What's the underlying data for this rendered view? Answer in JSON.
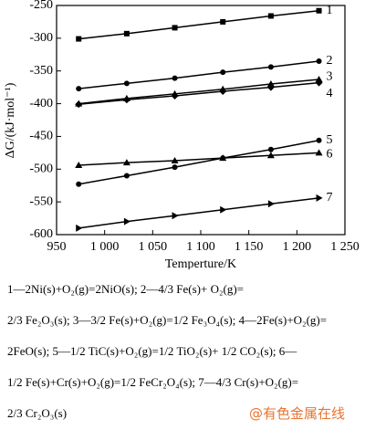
{
  "chart_data": {
    "type": "line",
    "x_label": "Temperture/K",
    "y_label": "ΔG/(kJ·mol⁻¹)",
    "x": [
      973,
      1023,
      1073,
      1123,
      1173,
      1223
    ],
    "xlim": [
      950,
      1250
    ],
    "xticks": [
      950,
      {
        "value": 1000,
        "label": "1 000"
      },
      {
        "value": 1050,
        "label": "1 050"
      },
      {
        "value": 1100,
        "label": "1 100"
      },
      {
        "value": 1150,
        "label": "1 150"
      },
      {
        "value": 1200,
        "label": "1 200"
      },
      {
        "value": 1250,
        "label": "1 250"
      }
    ],
    "ylim": [
      -600,
      -250
    ],
    "yticks": [
      -600,
      -550,
      -500,
      -450,
      -400,
      -350,
      -300,
      -250
    ],
    "series": [
      {
        "name": "1",
        "color": "#000000",
        "marker": "square",
        "values": [
          -301,
          -293,
          -284,
          -275,
          -266,
          -258
        ]
      },
      {
        "name": "2",
        "color": "#000000",
        "marker": "circle",
        "values": [
          -377,
          -369,
          -361,
          -352,
          -344,
          -335
        ]
      },
      {
        "name": "3",
        "color": "#000000",
        "marker": "triangle",
        "values": [
          -400,
          -392,
          -385,
          -378,
          -370,
          -363
        ]
      },
      {
        "name": "4",
        "color": "#000000",
        "marker": "diamond",
        "values": [
          -401,
          -394,
          -388,
          -381,
          -375,
          -368
        ]
      },
      {
        "name": "5",
        "color": "#000000",
        "marker": "circle",
        "values": [
          -523,
          -510,
          -497,
          -483,
          -470,
          -456
        ]
      },
      {
        "name": "6",
        "color": "#000000",
        "marker": "triangle",
        "values": [
          -494,
          -490,
          -487,
          -483,
          -479,
          -475
        ]
      },
      {
        "name": "7",
        "color": "#000000",
        "marker": "triangle-right",
        "values": [
          -590,
          -580,
          -571,
          -562,
          -553,
          -544
        ]
      }
    ]
  },
  "caption": [
    "1—2Ni(s)+O₂(g)=2NiO(s);  2—4/3 Fe(s)+ O₂(g)=",
    "2/3 Fe₂O₃(s);  3—3/2 Fe(s)+O₂(g)=1/2 Fe₃O₄(s);  4—2Fe(s)+O₂(g)=",
    "2FeO(s);  5—1/2 TiC(s)+O₂(g)=1/2 TiO₂(s)+ 1/2 CO₂(s);  6—",
    "1/2 Fe(s)+Cr(s)+O₂(g)=1/2 FeCr₂O₄(s);  7—4/3 Cr(s)+O₂(g)=",
    "2/3 Cr₂O₃(s)"
  ],
  "watermark": "@有色金属在线"
}
